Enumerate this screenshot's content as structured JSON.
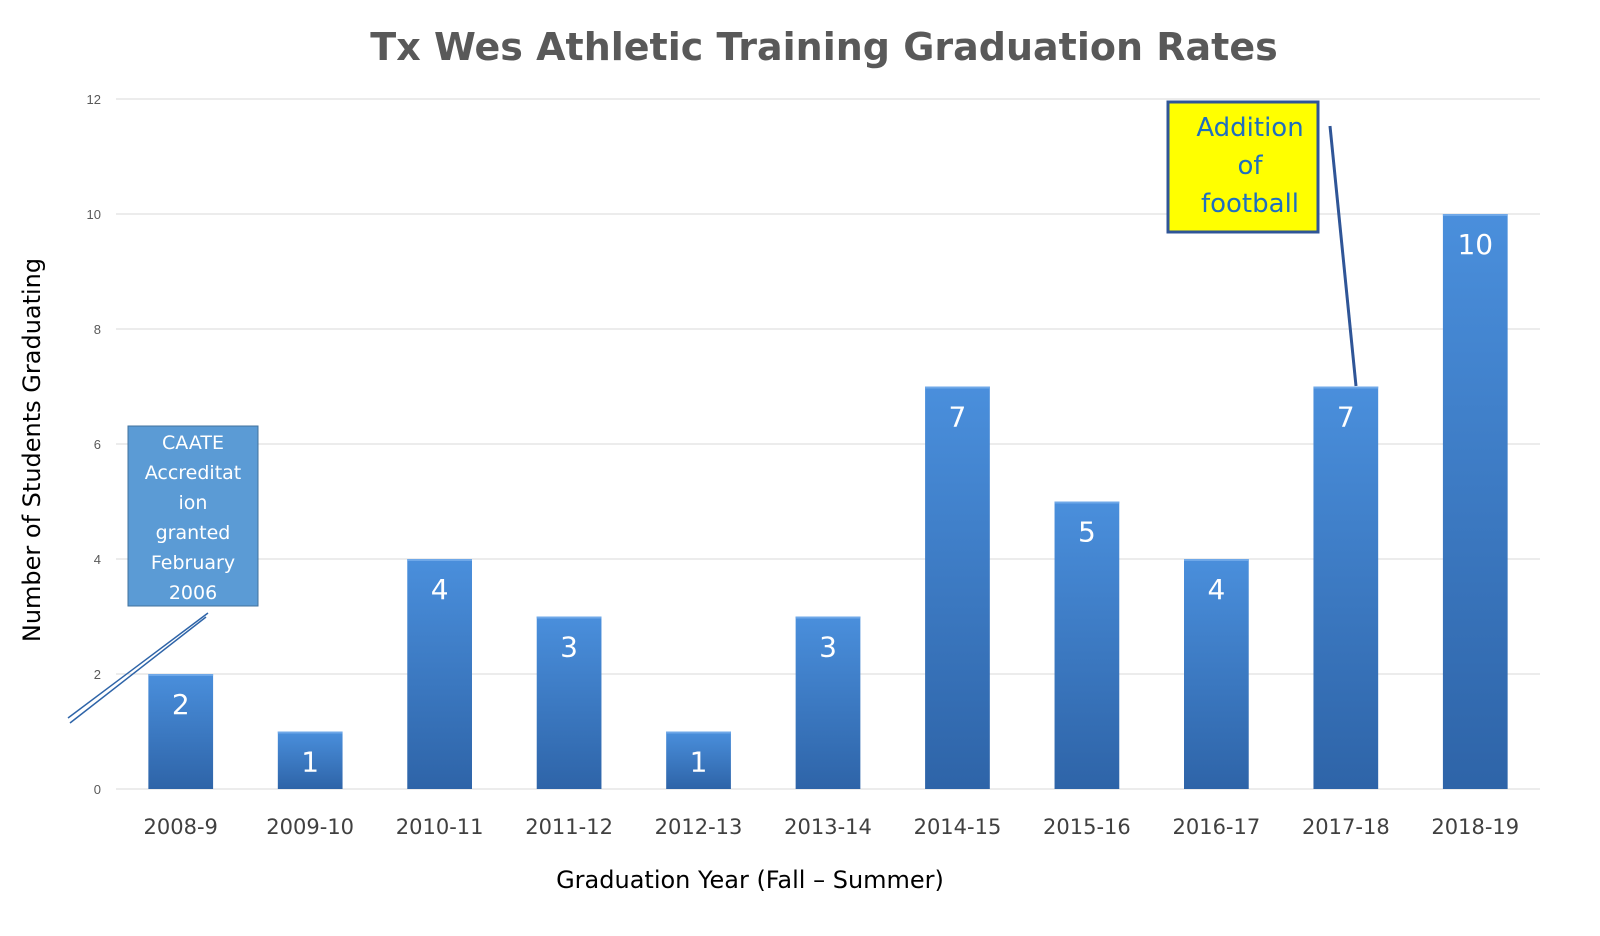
{
  "chart_data": {
    "type": "bar",
    "title": "Tx Wes Athletic Training Graduation Rates",
    "xlabel": "Graduation Year (Fall – Summer)",
    "ylabel": "Number of Students Graduating",
    "categories": [
      "2008-9",
      "2009-10",
      "2010-11",
      "2011-12",
      "2012-13",
      "2013-14",
      "2014-15",
      "2015-16",
      "2016-17",
      "2017-18",
      "2018-19"
    ],
    "values": [
      2,
      1,
      4,
      3,
      1,
      3,
      7,
      5,
      4,
      7,
      10
    ],
    "data_labels": [
      "2",
      "1",
      "4",
      "3",
      "1",
      "3",
      "7",
      "5",
      "4",
      "7",
      "10"
    ],
    "ylim": [
      0,
      12
    ],
    "yticks": [
      0,
      2,
      4,
      6,
      8,
      10,
      12
    ],
    "grid": true,
    "legend": "none",
    "colors": {
      "bar_top": "#4a8fdc",
      "bar_bottom": "#2e64a8",
      "gridline": "#d9d9d9",
      "title": "#595959",
      "caate_box": "#5b9bd5",
      "football_box": "#ffff00",
      "football_border": "#2f5597",
      "football_text": "#1f6fbf"
    },
    "annotations": [
      {
        "id": "caate",
        "lines": [
          "CAATE",
          "Accreditat",
          "ion",
          "granted",
          "February",
          "2006"
        ],
        "category": "2008-9"
      },
      {
        "id": "football",
        "lines": [
          "Addition",
          "of",
          "football"
        ],
        "category": "2017-18"
      }
    ]
  }
}
